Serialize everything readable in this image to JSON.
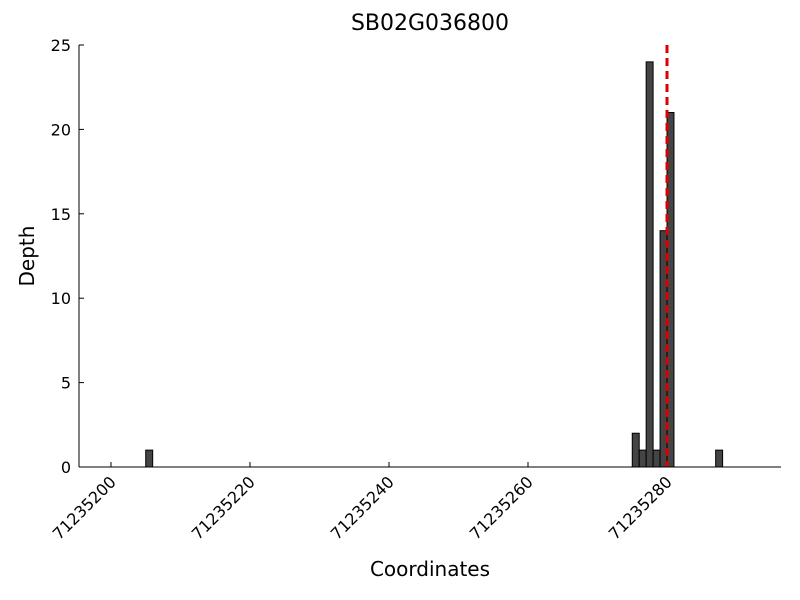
{
  "chart_data": {
    "type": "bar",
    "title": "SB02G036800",
    "xlabel": "Coordinates",
    "ylabel": "Depth",
    "x": [
      71235205,
      71235275,
      71235276,
      71235277,
      71235278,
      71235279,
      71235280,
      71235287
    ],
    "values": [
      1,
      2,
      1,
      24,
      1,
      14,
      21,
      1
    ],
    "color": "#444444",
    "xlim": [
      71235195.4,
      71235296.4
    ],
    "xticks": [
      71235200,
      71235220,
      71235240,
      71235260,
      71235280
    ],
    "ylim": [
      0,
      25
    ],
    "yticks": [
      0,
      5,
      10,
      15,
      20,
      25
    ],
    "vline": {
      "x": 71235280,
      "color": "#dd0000",
      "style": "dashed"
    }
  }
}
